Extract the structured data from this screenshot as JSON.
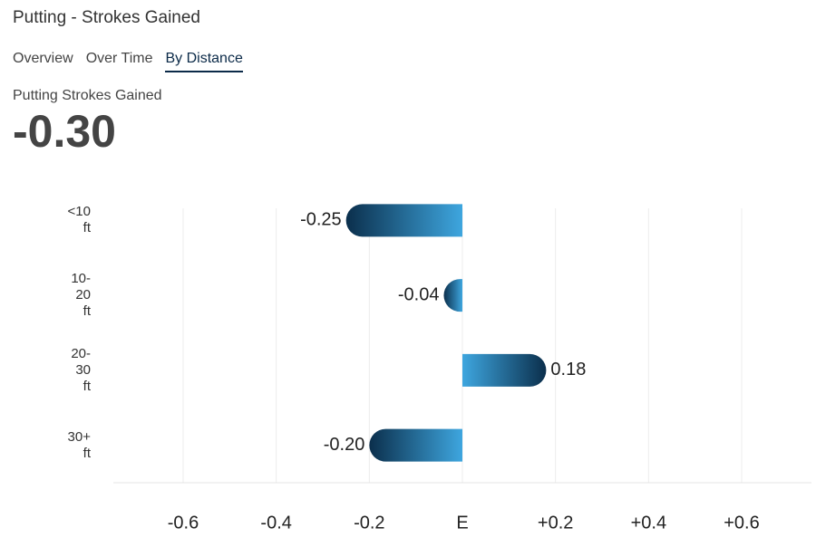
{
  "header": {
    "title": "Putting - Strokes Gained"
  },
  "tabs": [
    "Overview",
    "Over Time",
    "By Distance"
  ],
  "active_tab": 2,
  "metric": {
    "label": "Putting Strokes Gained",
    "value": "-0.30"
  },
  "chart_data": {
    "type": "hbar",
    "categories": [
      "<10 ft",
      "10-20 ft",
      "20-30 ft",
      "30+ ft"
    ],
    "values": [
      -0.25,
      -0.04,
      0.18,
      -0.2
    ],
    "value_labels": [
      "-0.25",
      "-0.04",
      "0.18",
      "-0.20"
    ],
    "colors": [
      "#0b2f4c",
      "#3ea6df"
    ],
    "xlim": [
      -0.75,
      0.75
    ],
    "xticks": [
      -0.6,
      -0.4,
      -0.2,
      {
        "value": 0,
        "label": "E"
      },
      {
        "value": 0.2,
        "label": "+0.2"
      },
      {
        "value": 0.4,
        "label": "+0.4"
      },
      {
        "value": 0.6,
        "label": "+0.6"
      }
    ],
    "grid": true
  }
}
